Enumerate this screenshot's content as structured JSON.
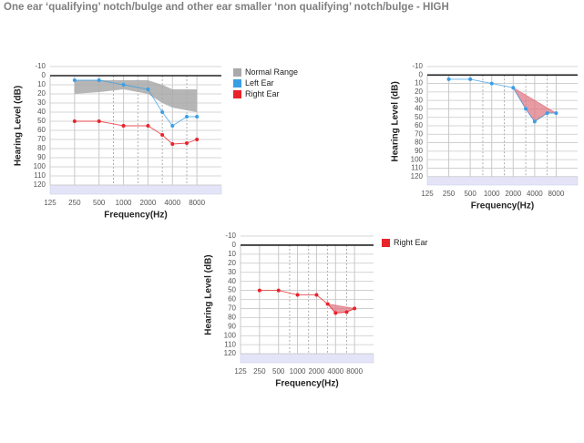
{
  "title": "One ear ‘qualifying’ notch/bulge and other ear smaller ‘non qualifying’ notch/bulge - HIGH",
  "chart_data": [
    {
      "type": "audiogram",
      "x_label": "Frequency(Hz)",
      "y_label": "Hearing Level (dB)",
      "xscale": "log",
      "xlim": [
        125,
        16000
      ],
      "xticks": [
        125,
        250,
        500,
        1000,
        2000,
        4000,
        8000
      ],
      "xminor": [
        750,
        1500,
        3000,
        6000
      ],
      "ylim": [
        -10,
        130
      ],
      "yticks": [
        -10,
        0,
        10,
        20,
        30,
        40,
        50,
        60,
        70,
        80,
        90,
        100,
        110,
        120
      ],
      "y_inverted": true,
      "shaded_band": [
        120,
        130
      ],
      "band_color": "#e4e4f8",
      "zero_line": true,
      "legend": "right",
      "normal_range": {
        "name": "Normal Range",
        "color": "#a9a9a9",
        "x": [
          250,
          500,
          1000,
          2000,
          3000,
          4000,
          6000,
          8000
        ],
        "lower": [
          5,
          5,
          5,
          5,
          10,
          15,
          15,
          15
        ],
        "upper": [
          20,
          18,
          15,
          20,
          30,
          35,
          38,
          40
        ]
      },
      "series": [
        {
          "name": "Left Ear",
          "color": "#3a9ee6",
          "x": [
            250,
            500,
            1000,
            2000,
            3000,
            4000,
            6000,
            8000
          ],
          "values": [
            5,
            5,
            10,
            15,
            40,
            55,
            45,
            45
          ]
        },
        {
          "name": "Right Ear",
          "color": "#e8232a",
          "x": [
            250,
            500,
            1000,
            2000,
            3000,
            4000,
            6000,
            8000
          ],
          "values": [
            50,
            50,
            55,
            55,
            65,
            75,
            74,
            70
          ]
        }
      ]
    },
    {
      "type": "audiogram",
      "x_label": "Frequency(Hz)",
      "y_label": "Hearing Level (dB)",
      "xscale": "log",
      "xlim": [
        125,
        16000
      ],
      "xticks": [
        125,
        250,
        500,
        1000,
        2000,
        4000,
        8000
      ],
      "xminor": [
        750,
        1500,
        3000,
        6000
      ],
      "ylim": [
        -10,
        130
      ],
      "yticks": [
        -10,
        0,
        10,
        20,
        30,
        40,
        50,
        60,
        70,
        80,
        90,
        100,
        110,
        120
      ],
      "y_inverted": true,
      "shaded_band": [
        120,
        130
      ],
      "band_color": "#e4e4f8",
      "zero_line": true,
      "notch": {
        "x": [
          2000,
          8000
        ],
        "color": "#e27a86"
      },
      "series": [
        {
          "color": "#3a9ee6",
          "x": [
            250,
            500,
            1000,
            2000,
            3000,
            4000,
            6000,
            8000
          ],
          "values": [
            5,
            5,
            10,
            15,
            40,
            55,
            45,
            45
          ]
        }
      ]
    },
    {
      "type": "audiogram",
      "x_label": "Frequency(Hz)",
      "y_label": "Hearing Level (dB)",
      "xscale": "log",
      "xlim": [
        125,
        16000
      ],
      "xticks": [
        125,
        250,
        500,
        1000,
        2000,
        4000,
        8000
      ],
      "xminor": [
        750,
        1500,
        3000,
        6000
      ],
      "ylim": [
        -10,
        130
      ],
      "yticks": [
        -10,
        0,
        10,
        20,
        30,
        40,
        50,
        60,
        70,
        80,
        90,
        100,
        110,
        120
      ],
      "y_inverted": true,
      "shaded_band": [
        120,
        130
      ],
      "band_color": "#e4e4f8",
      "zero_line": true,
      "legend": "right",
      "notch": {
        "x": [
          3000,
          8000
        ],
        "color": "#e27a86"
      },
      "series": [
        {
          "name": "Right Ear",
          "color": "#e8232a",
          "x": [
            250,
            500,
            1000,
            2000,
            3000,
            4000,
            6000,
            8000
          ],
          "values": [
            50,
            50,
            55,
            55,
            65,
            75,
            74,
            70
          ]
        }
      ]
    }
  ]
}
